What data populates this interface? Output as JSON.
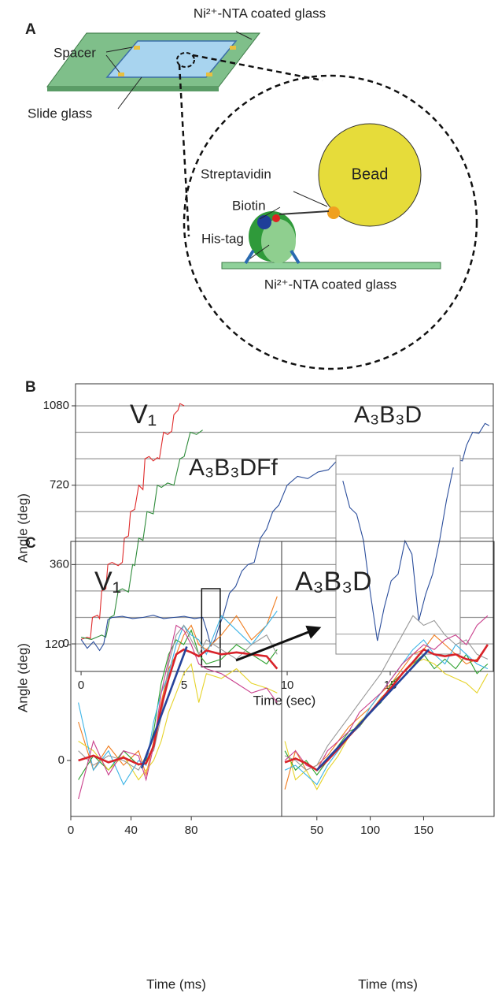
{
  "panel_a": {
    "label": "A",
    "top_glass": "Ni²⁺-NTA coated glass",
    "spacer": "Spacer",
    "slide_glass": "Slide glass",
    "bead": "Bead",
    "streptavidin": "Streptavidin",
    "biotin": "Biotin",
    "his_tag": "His-tag",
    "bottom_glass": "Ni²⁺-NTA coated glass"
  },
  "chart_data": [
    {
      "type": "line",
      "panel_label": "B",
      "xlabel": "Time (sec)",
      "ylabel": "Angle (deg)",
      "xlim": [
        -0.27,
        20
      ],
      "xticks": [
        0,
        5,
        10,
        15
      ],
      "ylim": [
        -125,
        1180
      ],
      "yticks": [
        0,
        360,
        720,
        1080
      ],
      "grid_lines": [
        0,
        120,
        240,
        360,
        480,
        600,
        720,
        840,
        960,
        1080
      ],
      "series": [
        {
          "name": "V₁",
          "color": "#df2a2a",
          "x": [
            0,
            0.3,
            0.45,
            0.55,
            0.8,
            0.9,
            1.0,
            1.2,
            1.3,
            1.5,
            1.8,
            2.0,
            2.1,
            2.3,
            2.4,
            2.6,
            2.8,
            3.0,
            3.1,
            3.3,
            3.5,
            3.7,
            3.8,
            4.0,
            4.2,
            4.4,
            4.5,
            4.7,
            4.8,
            5.0
          ],
          "values": [
            20,
            30,
            25,
            120,
            130,
            115,
            240,
            250,
            360,
            370,
            355,
            370,
            480,
            490,
            600,
            610,
            720,
            700,
            840,
            850,
            830,
            845,
            840,
            960,
            950,
            965,
            1040,
            1060,
            1090,
            1080
          ]
        },
        {
          "name": "A₃B₃DFf",
          "color": "#2e8b3a",
          "x": [
            0,
            0.5,
            1.0,
            1.2,
            1.4,
            1.6,
            1.8,
            2.0,
            2.3,
            2.5,
            2.6,
            2.8,
            3.0,
            3.2,
            3.5,
            3.7,
            3.9,
            4.2,
            4.5,
            4.8,
            5.0,
            5.3,
            5.6,
            5.9
          ],
          "values": [
            30,
            20,
            40,
            30,
            120,
            130,
            240,
            250,
            235,
            360,
            355,
            480,
            470,
            600,
            590,
            720,
            710,
            730,
            720,
            840,
            850,
            960,
            950,
            970
          ]
        },
        {
          "name": "A₃B₃D",
          "color": "#2a4d9b",
          "x": [
            0,
            0.3,
            0.6,
            0.9,
            1.1,
            1.3,
            1.5,
            2,
            2.5,
            3,
            3.5,
            4,
            4.5,
            5,
            5.5,
            5.9,
            6.1,
            6.3,
            6.5,
            6.7,
            6.9,
            7.2,
            7.5,
            7.8,
            8.1,
            8.4,
            8.7,
            9.0,
            9.3,
            9.6,
            10,
            10.5,
            11,
            11.5,
            12,
            12.5,
            13,
            14,
            15,
            16,
            17,
            18,
            18.5,
            18.7,
            19,
            19.3,
            19.6,
            19.8
          ],
          "values": [
            20,
            -20,
            10,
            -30,
            0,
            110,
            120,
            125,
            115,
            120,
            130,
            115,
            120,
            125,
            115,
            120,
            60,
            -10,
            20,
            80,
            130,
            230,
            260,
            330,
            360,
            370,
            480,
            520,
            600,
            630,
            720,
            760,
            750,
            780,
            790,
            840,
            850,
            840,
            845,
            835,
            850,
            840,
            830,
            900,
            960,
            955,
            1000,
            990
          ]
        }
      ],
      "inset": {
        "xlim": [
          5.85,
          6.75
        ],
        "ylim": [
          -15,
          134
        ],
        "grid_lines": [
          0,
          120
        ],
        "color": "#2a4d9b",
        "x": [
          5.9,
          5.95,
          6.0,
          6.05,
          6.1,
          6.15,
          6.2,
          6.25,
          6.3,
          6.35,
          6.4,
          6.45,
          6.5,
          6.55,
          6.6,
          6.65,
          6.7
        ],
        "values": [
          115,
          95,
          90,
          70,
          30,
          -5,
          20,
          40,
          45,
          70,
          60,
          10,
          30,
          45,
          70,
          100,
          125
        ]
      }
    },
    {
      "type": "line",
      "panel_label": "C",
      "xlabel": "Time (ms)",
      "ylabel": "Angle (deg)",
      "annotation": "V₁",
      "annotation_color": "#d8232a",
      "xlim": [
        0,
        140
      ],
      "xticks": [
        0,
        40,
        80
      ],
      "ylim": [
        -58,
        227
      ],
      "yticks": [
        0,
        120
      ],
      "series": [
        {
          "color": "#f07c1e",
          "x": [
            5,
            15,
            25,
            35,
            45,
            50,
            55,
            60,
            65,
            70,
            75,
            80,
            85,
            90,
            100,
            110,
            120,
            130,
            137
          ],
          "values": [
            40,
            -10,
            15,
            -5,
            10,
            -15,
            20,
            60,
            95,
            110,
            130,
            140,
            120,
            115,
            130,
            150,
            125,
            140,
            170
          ]
        },
        {
          "color": "#2ca02c",
          "x": [
            5,
            15,
            25,
            35,
            45,
            50,
            55,
            60,
            65,
            70,
            75,
            80,
            85,
            90,
            100,
            110,
            120,
            130,
            137
          ],
          "values": [
            -20,
            5,
            -10,
            10,
            -5,
            0,
            30,
            80,
            110,
            125,
            120,
            135,
            110,
            100,
            105,
            120,
            110,
            100,
            115
          ]
        },
        {
          "color": "#e6d32a",
          "x": [
            5,
            15,
            25,
            35,
            45,
            50,
            55,
            60,
            65,
            70,
            75,
            80,
            85,
            90,
            100,
            110,
            120,
            130,
            137
          ],
          "values": [
            20,
            10,
            -10,
            5,
            -20,
            -10,
            0,
            20,
            50,
            70,
            90,
            100,
            60,
            90,
            85,
            95,
            80,
            75,
            70
          ]
        },
        {
          "color": "#3cb4e6",
          "x": [
            5,
            15,
            25,
            35,
            45,
            50,
            55,
            60,
            65,
            70,
            75,
            80,
            85,
            90,
            100,
            110,
            120,
            130,
            137
          ],
          "values": [
            60,
            -10,
            10,
            -25,
            0,
            -5,
            40,
            70,
            90,
            120,
            140,
            130,
            125,
            110,
            150,
            135,
            120,
            140,
            155
          ]
        },
        {
          "color": "#999999",
          "x": [
            5,
            15,
            25,
            35,
            45,
            50,
            55,
            60,
            65,
            70,
            75,
            80,
            85,
            90,
            100,
            110,
            120,
            130,
            137
          ],
          "values": [
            10,
            -5,
            5,
            0,
            -10,
            5,
            10,
            45,
            100,
            130,
            140,
            125,
            110,
            125,
            115,
            105,
            120,
            130,
            110
          ]
        },
        {
          "color": "#c93f8c",
          "x": [
            5,
            15,
            25,
            35,
            45,
            50,
            55,
            60,
            65,
            70,
            75,
            80,
            85,
            90,
            100,
            110,
            120,
            130,
            137
          ],
          "values": [
            -40,
            20,
            -15,
            10,
            5,
            -20,
            15,
            70,
            105,
            140,
            135,
            120,
            100,
            95,
            90,
            80,
            70,
            75,
            60
          ]
        },
        {
          "color": "#d8232a",
          "x": [
            5,
            15,
            25,
            35,
            45,
            50,
            55,
            60,
            65,
            70,
            75,
            80,
            85,
            90,
            100,
            110,
            120,
            130,
            137
          ],
          "values": [
            0,
            5,
            -2,
            3,
            -4,
            -3,
            15,
            55,
            85,
            110,
            115,
            112,
            108,
            114,
            110,
            112,
            110,
            108,
            95
          ]
        },
        {
          "color": "#26439a",
          "x": [
            47,
            77
          ],
          "values": [
            -8,
            118
          ]
        }
      ]
    },
    {
      "type": "line",
      "xlabel": "Time (ms)",
      "annotation": "A₃B₃D",
      "annotation_color": "#26439a",
      "xlim": [
        17,
        216
      ],
      "xticks": [
        50,
        100,
        150
      ],
      "ylim": [
        -58,
        227
      ],
      "series": [
        {
          "color": "#f07c1e",
          "x": [
            20,
            30,
            40,
            50,
            60,
            70,
            80,
            90,
            100,
            110,
            120,
            130,
            140,
            150,
            160,
            170,
            180,
            190,
            200,
            210
          ],
          "values": [
            -30,
            10,
            -10,
            -5,
            5,
            20,
            35,
            45,
            55,
            70,
            80,
            95,
            110,
            115,
            130,
            120,
            110,
            100,
            105,
            120
          ]
        },
        {
          "color": "#2ca02c",
          "x": [
            20,
            30,
            40,
            50,
            60,
            70,
            80,
            90,
            100,
            110,
            120,
            130,
            140,
            150,
            160,
            170,
            180,
            190,
            200,
            210
          ],
          "values": [
            10,
            -10,
            0,
            -15,
            0,
            15,
            30,
            35,
            50,
            60,
            80,
            90,
            100,
            110,
            95,
            105,
            95,
            110,
            90,
            100
          ]
        },
        {
          "color": "#e6d32a",
          "x": [
            20,
            30,
            40,
            50,
            60,
            70,
            80,
            90,
            100,
            110,
            120,
            130,
            140,
            150,
            160,
            170,
            180,
            190,
            200,
            210
          ],
          "values": [
            20,
            -20,
            -10,
            -30,
            -10,
            5,
            25,
            40,
            50,
            65,
            75,
            90,
            100,
            105,
            100,
            90,
            85,
            80,
            70,
            90
          ]
        },
        {
          "color": "#3cb4e6",
          "x": [
            20,
            30,
            40,
            50,
            60,
            70,
            80,
            90,
            100,
            110,
            120,
            130,
            140,
            150,
            160,
            170,
            180,
            190,
            200,
            210
          ],
          "values": [
            -10,
            -5,
            -15,
            -25,
            -5,
            10,
            25,
            35,
            55,
            70,
            85,
            100,
            115,
            125,
            110,
            100,
            120,
            110,
            100,
            95
          ]
        },
        {
          "color": "#999999",
          "x": [
            20,
            30,
            40,
            50,
            60,
            70,
            80,
            90,
            100,
            110,
            120,
            130,
            140,
            150,
            160,
            170,
            180,
            190,
            200,
            210
          ],
          "values": [
            5,
            0,
            -10,
            -5,
            15,
            30,
            45,
            60,
            75,
            90,
            110,
            130,
            150,
            140,
            145,
            130,
            120,
            125,
            110,
            105
          ]
        },
        {
          "color": "#c93f8c",
          "x": [
            20,
            30,
            40,
            50,
            60,
            70,
            80,
            90,
            100,
            110,
            120,
            130,
            140,
            150,
            160,
            170,
            180,
            190,
            200,
            210
          ],
          "values": [
            0,
            10,
            -5,
            -10,
            10,
            20,
            30,
            50,
            60,
            70,
            85,
            100,
            110,
            120,
            115,
            125,
            130,
            120,
            140,
            150
          ]
        },
        {
          "color": "#d8232a",
          "x": [
            20,
            30,
            40,
            50,
            60,
            70,
            80,
            90,
            100,
            110,
            120,
            130,
            140,
            150,
            160,
            170,
            180,
            190,
            200,
            210
          ],
          "values": [
            -2,
            2,
            -3,
            -10,
            0,
            12,
            25,
            37,
            50,
            63,
            76,
            90,
            102,
            115,
            110,
            108,
            110,
            105,
            103,
            120
          ]
        },
        {
          "color": "#26439a",
          "x": [
            50,
            155
          ],
          "values": [
            -10,
            115
          ]
        }
      ]
    }
  ]
}
